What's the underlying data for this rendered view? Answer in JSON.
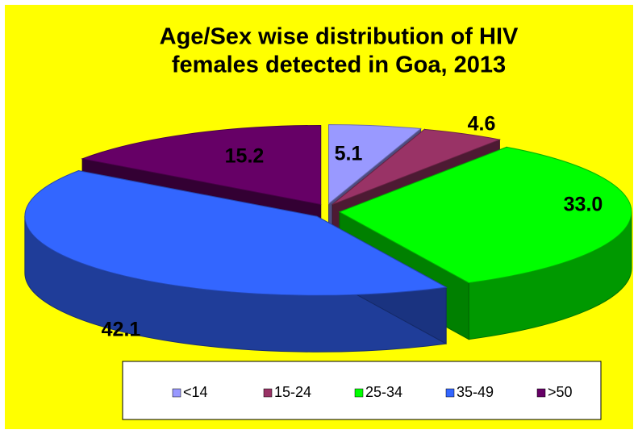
{
  "chart_data": {
    "type": "pie3d",
    "title": [
      "Age/Sex wise distribution of HIV",
      "females detected in Goa, 2013"
    ],
    "categories": [
      "<14",
      "15-24",
      "25-34",
      "35-49",
      ">50"
    ],
    "values": [
      5.1,
      4.6,
      33.0,
      42.1,
      15.2
    ],
    "value_labels": [
      "5.1",
      "4.6",
      "33.0",
      "42.1",
      "15.2"
    ],
    "colors": [
      "#9999ff",
      "#993366",
      "#00ff00",
      "#3366ff",
      "#660066"
    ],
    "legend": "bottom"
  }
}
